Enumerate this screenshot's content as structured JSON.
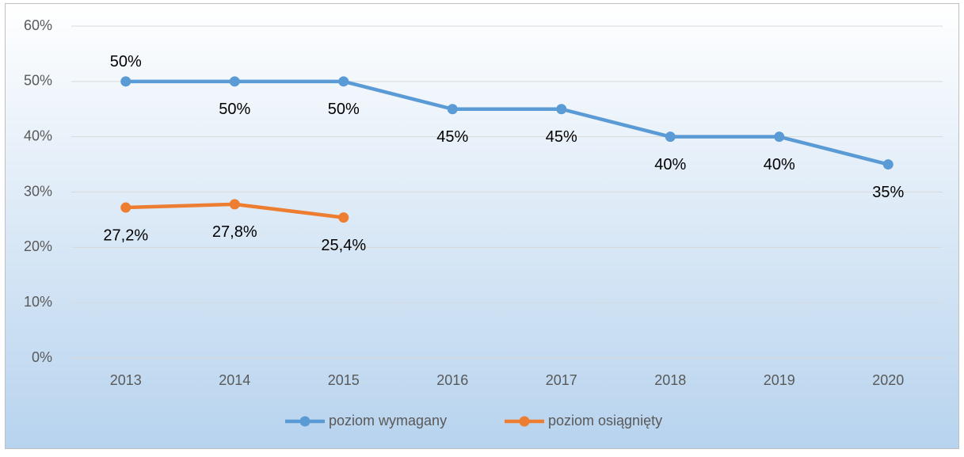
{
  "chart_data": {
    "type": "line",
    "categories": [
      "2013",
      "2014",
      "2015",
      "2016",
      "2017",
      "2018",
      "2019",
      "2020"
    ],
    "series": [
      {
        "name": "poziom wymagany",
        "color": "#5b9bd5",
        "values": [
          50,
          50,
          50,
          45,
          45,
          40,
          40,
          35
        ],
        "value_labels": [
          "50%",
          "50%",
          "50%",
          "45%",
          "45%",
          "40%",
          "40%",
          "35%"
        ]
      },
      {
        "name": "poziom osiągnięty",
        "color": "#ed7d31",
        "values": [
          27.2,
          27.8,
          25.4,
          null,
          null,
          null,
          null,
          null
        ],
        "value_labels": [
          "27,2%",
          "27,8%",
          "25,4%",
          null,
          null,
          null,
          null,
          null
        ]
      }
    ],
    "ylim": [
      0,
      60
    ],
    "yticks": [
      {
        "value": 0,
        "label": "0%"
      },
      {
        "value": 10,
        "label": "10%"
      },
      {
        "value": 20,
        "label": "20%"
      },
      {
        "value": 30,
        "label": "30%"
      },
      {
        "value": 40,
        "label": "40%"
      },
      {
        "value": 50,
        "label": "50%"
      },
      {
        "value": 60,
        "label": "60%"
      }
    ],
    "grid": true,
    "legend": "bottom"
  }
}
